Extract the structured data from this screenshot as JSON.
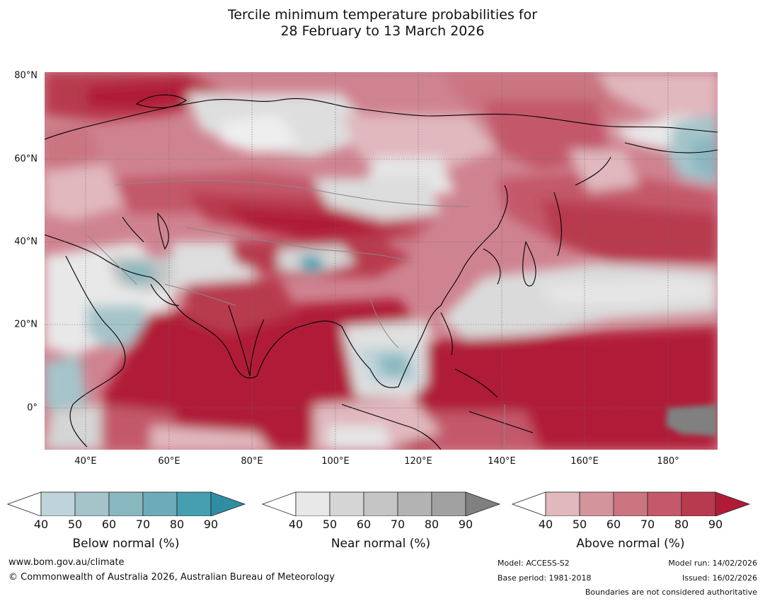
{
  "title": {
    "line1": "Tercile minimum temperature probabilities for",
    "line2": "28 February to 13 March 2026"
  },
  "map": {
    "lat_labels": [
      "80°N",
      "60°N",
      "40°N",
      "20°N",
      "0°"
    ],
    "lon_labels": [
      "40°E",
      "60°E",
      "80°E",
      "100°E",
      "120°E",
      "140°E",
      "160°E",
      "180°"
    ],
    "extent": {
      "lon": [
        30,
        192
      ],
      "lat": [
        -10,
        81
      ]
    },
    "gridlines": true
  },
  "legends": [
    {
      "name": "Below normal (%)",
      "ticks": [
        "40",
        "50",
        "60",
        "70",
        "80",
        "90"
      ],
      "colors": [
        "#ffffff",
        "#bed3da",
        "#a5c4ca",
        "#89b7c0",
        "#6cabb7",
        "#459fb0",
        "#2f8ea1"
      ]
    },
    {
      "name": "Near normal (%)",
      "ticks": [
        "40",
        "50",
        "60",
        "70",
        "80",
        "90"
      ],
      "colors": [
        "#ffffff",
        "#e8e8e8",
        "#d5d5d5",
        "#c5c5c5",
        "#b3b3b3",
        "#a1a1a1",
        "#808080"
      ]
    },
    {
      "name": "Above normal (%)",
      "ticks": [
        "40",
        "50",
        "60",
        "70",
        "80",
        "90"
      ],
      "colors": [
        "#ffffff",
        "#e0b8be",
        "#d4949c",
        "#cb7581",
        "#c3596a",
        "#b83a4e",
        "#b01c38"
      ]
    }
  ],
  "footer": {
    "website": "www.bom.gov.au/climate",
    "copyright": "© Commonwealth of Australia 2026, Australian Bureau of Meteorology",
    "model": "Model: ACCESS-S2",
    "base_period": "Base period: 1981-2018",
    "model_run": "Model run: 14/02/2026",
    "issued": "Issued: 16/02/2026",
    "disclaimer": "Boundaries are not considered authoritative"
  }
}
